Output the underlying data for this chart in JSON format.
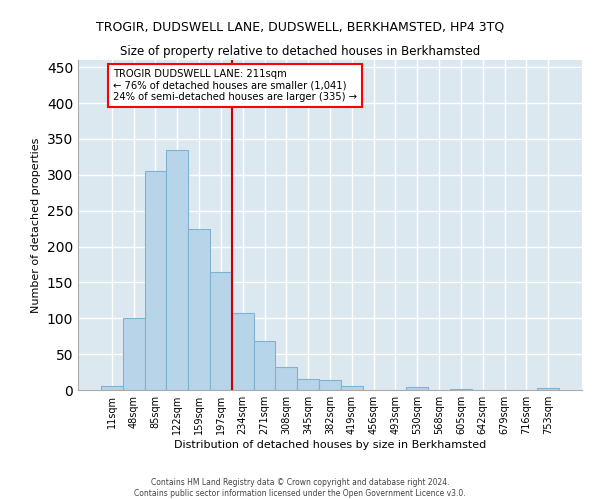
{
  "title": "TROGIR, DUDSWELL LANE, DUDSWELL, BERKHAMSTED, HP4 3TQ",
  "subtitle": "Size of property relative to detached houses in Berkhamsted",
  "xlabel": "Distribution of detached houses by size in Berkhamsted",
  "ylabel": "Number of detached properties",
  "bar_labels": [
    "11sqm",
    "48sqm",
    "85sqm",
    "122sqm",
    "159sqm",
    "197sqm",
    "234sqm",
    "271sqm",
    "308sqm",
    "345sqm",
    "382sqm",
    "419sqm",
    "456sqm",
    "493sqm",
    "530sqm",
    "568sqm",
    "605sqm",
    "642sqm",
    "679sqm",
    "716sqm",
    "753sqm"
  ],
  "bar_values": [
    5,
    100,
    305,
    335,
    225,
    165,
    108,
    68,
    32,
    15,
    14,
    6,
    0,
    0,
    4,
    0,
    2,
    0,
    0,
    0,
    3
  ],
  "bar_facecolor": "#b8d4e8",
  "bar_edgecolor": "#7fb3d3",
  "bg_color": "#dce8f0",
  "vline_position": 5.5,
  "vline_color": "#cc0000",
  "ann_line1": "TROGIR DUDSWELL LANE: 211sqm",
  "ann_line2": "← 76% of detached houses are smaller (1,041)",
  "ann_line3": "24% of semi-detached houses are larger (335) →",
  "ylim_max": 460,
  "yticks": [
    0,
    50,
    100,
    150,
    200,
    250,
    300,
    350,
    400,
    450
  ],
  "footer1": "Contains HM Land Registry data © Crown copyright and database right 2024.",
  "footer2": "Contains public sector information licensed under the Open Government Licence v3.0."
}
